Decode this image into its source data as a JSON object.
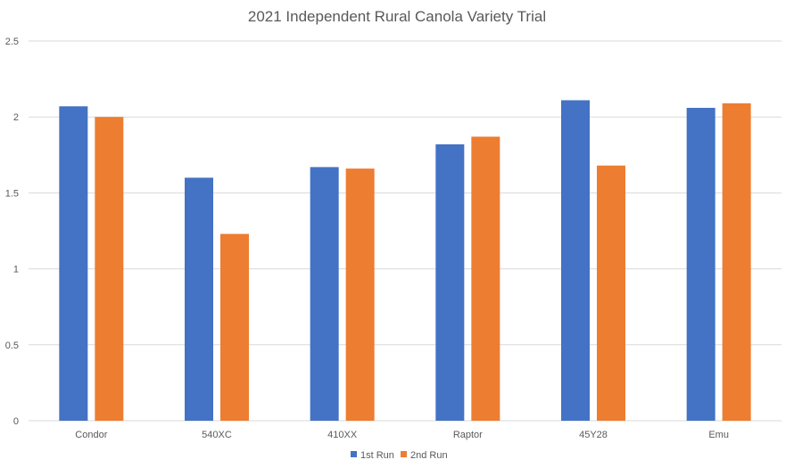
{
  "chart_data": {
    "type": "bar",
    "title": "2021 Independent Rural Canola Variety Trial",
    "xlabel": "",
    "ylabel": "",
    "categories": [
      "Condor",
      "540XC",
      "410XX",
      "Raptor",
      "45Y28",
      "Emu"
    ],
    "series": [
      {
        "name": "1st Run",
        "color": "#4472c4",
        "values": [
          2.07,
          1.6,
          1.67,
          1.82,
          2.11,
          2.06
        ]
      },
      {
        "name": "2nd Run",
        "color": "#ed7d31",
        "values": [
          2.0,
          1.23,
          1.66,
          1.87,
          1.68,
          2.09
        ]
      }
    ],
    "ylim": [
      0,
      2.5
    ],
    "yticks": [
      "0",
      "0.5",
      "1",
      "1.5",
      "2",
      "2.5"
    ],
    "grid": true,
    "legend": "bottom"
  }
}
